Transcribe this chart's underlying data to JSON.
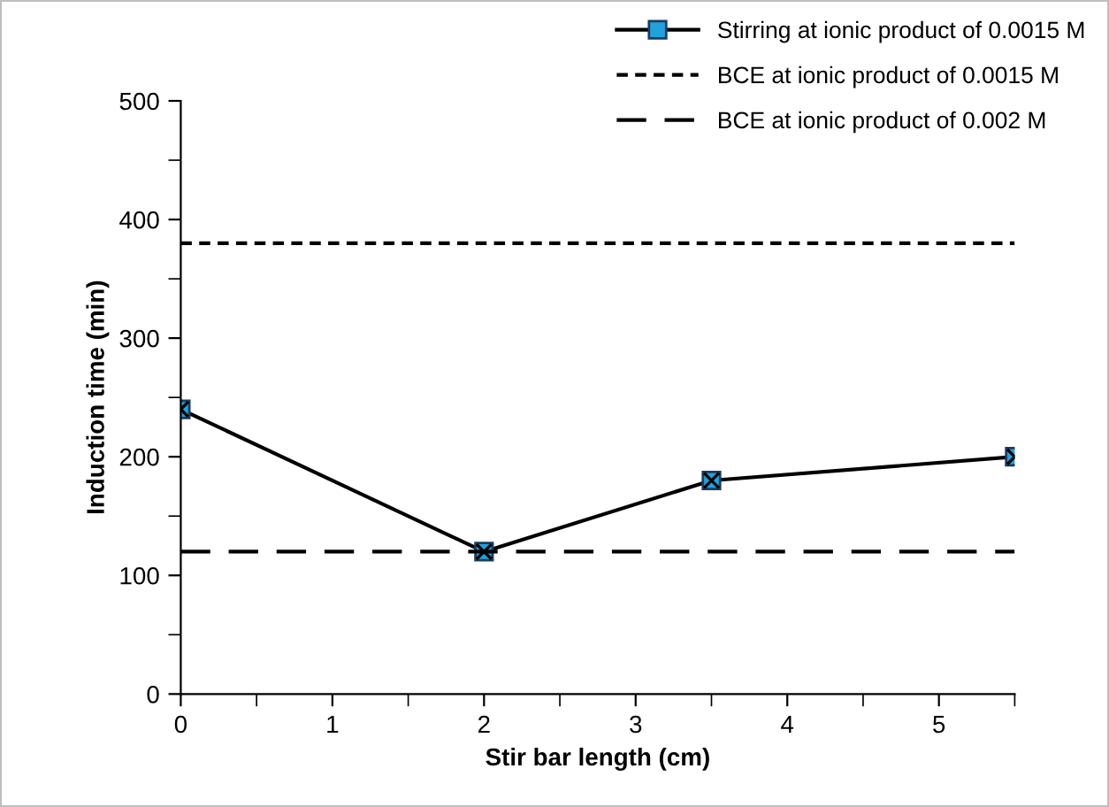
{
  "chart_data": {
    "type": "line",
    "xlabel": "Stir bar length (cm)",
    "ylabel": "Induction time (min)",
    "series": [
      {
        "name": "Stirring at ionic product of 0.0015 M",
        "color": "#000000",
        "x": [
          0,
          2,
          3.5,
          5.5
        ],
        "values": [
          240,
          120,
          180,
          200
        ],
        "marker": "cross",
        "line_style": "solid"
      },
      {
        "name": "BCE at ionic product of 0.0015 M",
        "color": "#000000",
        "x": [
          0,
          5.5
        ],
        "values": [
          380,
          380
        ],
        "marker": "none",
        "line_style": "dotted"
      },
      {
        "name": "BCE at ionic product of 0.002 M",
        "color": "#000000",
        "x": [
          0,
          5.5
        ],
        "values": [
          120,
          120
        ],
        "marker": "none",
        "line_style": "dashed"
      }
    ],
    "xlim": [
      0,
      5.5
    ],
    "xticks": [
      0,
      1,
      2,
      3,
      4,
      5
    ],
    "ylim": [
      0,
      500
    ],
    "yticks": [
      0,
      100,
      200,
      300,
      400,
      500
    ],
    "grid": false,
    "legend": "top right"
  }
}
